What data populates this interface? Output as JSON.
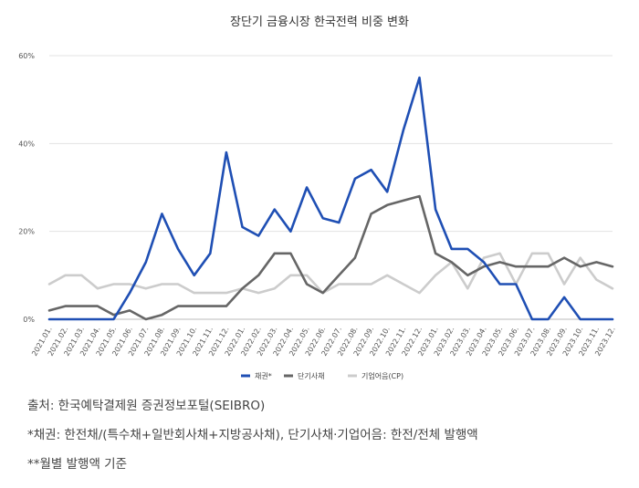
{
  "chart_data": {
    "type": "line",
    "title": "장단기 금융시장 한국전력 비중 변화",
    "xlabel": "",
    "ylabel": "",
    "ylim": [
      0,
      60
    ],
    "yticks": [
      "0%",
      "20%",
      "40%",
      "60%"
    ],
    "ytick_values": [
      0,
      20,
      40,
      60
    ],
    "grid": true,
    "legend_position": "bottom-center",
    "categories": [
      "2021.01.",
      "2021.02.",
      "2021.03.",
      "2021.04.",
      "2021.05.",
      "2021.06.",
      "2021.07.",
      "2021.08.",
      "2021.09.",
      "2021.10.",
      "2021.11.",
      "2021.12.",
      "2022.01.",
      "2022.02.",
      "2022.03.",
      "2022.04.",
      "2022.05.",
      "2022.06.",
      "2022.07.",
      "2022.08.",
      "2022.09.",
      "2022.10.",
      "2022.11.",
      "2022.12.",
      "2023.01.",
      "2023.02.",
      "2023.03.",
      "2023.04.",
      "2023.05.",
      "2023.06.",
      "2023.07.",
      "2023.08.",
      "2023.09.",
      "2023.10.",
      "2023.11.",
      "2023.12."
    ],
    "series": [
      {
        "name": "채권*",
        "color": "#1f4fb4",
        "values": [
          0,
          0,
          0,
          0,
          0,
          6,
          13,
          24,
          16,
          10,
          15,
          38,
          21,
          19,
          25,
          20,
          30,
          23,
          22,
          32,
          34,
          29,
          43,
          55,
          25,
          16,
          16,
          13,
          8,
          8,
          0,
          0,
          5,
          0,
          0,
          0
        ]
      },
      {
        "name": "단기사채",
        "color": "#666666",
        "values": [
          2,
          3,
          3,
          3,
          1,
          2,
          0,
          1,
          3,
          3,
          3,
          3,
          7,
          10,
          15,
          15,
          8,
          6,
          10,
          14,
          24,
          26,
          27,
          28,
          15,
          13,
          10,
          12,
          13,
          12,
          12,
          12,
          14,
          12,
          13,
          12
        ]
      },
      {
        "name": "기업어음(CP)",
        "color": "#cccccc",
        "values": [
          8,
          10,
          10,
          7,
          8,
          8,
          7,
          8,
          8,
          6,
          6,
          6,
          7,
          6,
          7,
          10,
          10,
          6,
          8,
          8,
          8,
          10,
          8,
          6,
          10,
          13,
          7,
          14,
          15,
          8,
          15,
          15,
          8,
          14,
          9,
          7
        ]
      }
    ]
  },
  "notes": {
    "source": "출처: 한국예탁결제원 증권정보포털(SEIBRO)",
    "footnote1": "*채권: 한전채/(특수채+일반회사채+지방공사채), 단기사채·기업어음: 한전/전체 발행액",
    "footnote2": "**월별 발행액 기준"
  }
}
